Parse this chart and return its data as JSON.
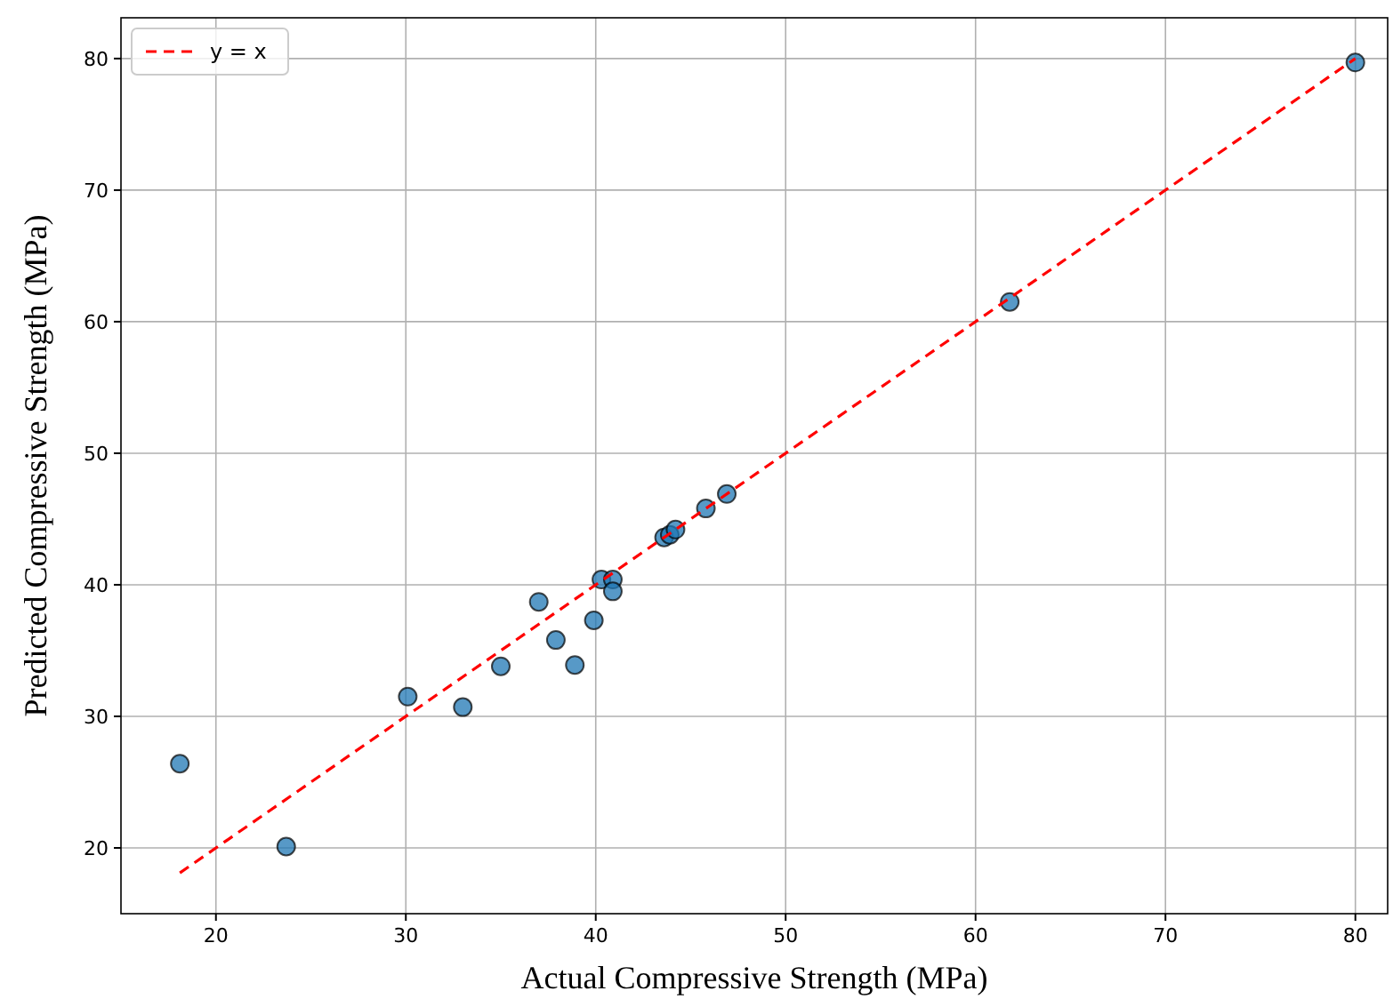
{
  "chart_data": {
    "type": "scatter",
    "xlabel": "Actual Compressive Strength (MPa)",
    "ylabel": "Predicted Compressive Strength (MPa)",
    "xlim": [
      15,
      81.7
    ],
    "ylim": [
      15,
      83.1
    ],
    "xticks": [
      20,
      30,
      40,
      50,
      60,
      70,
      80
    ],
    "yticks": [
      20,
      30,
      40,
      50,
      60,
      70,
      80
    ],
    "grid": true,
    "legend": "top left",
    "marker": "circle",
    "series": [
      {
        "color": "#1f77b4",
        "x": [
          18.1,
          23.7,
          30.1,
          33.0,
          35.0,
          37.0,
          37.9,
          38.9,
          39.9,
          40.3,
          40.9,
          40.9,
          43.6,
          43.9,
          44.2,
          45.8,
          46.9,
          61.8,
          80
        ],
        "values": [
          26.4,
          20.1,
          31.5,
          30.7,
          33.8,
          38.7,
          35.8,
          33.9,
          37.3,
          40.4,
          40.4,
          39.5,
          43.6,
          43.8,
          44.2,
          45.8,
          46.9,
          61.5,
          79.7
        ]
      },
      {
        "type": "line",
        "name": "y = x",
        "color": "#ff0000",
        "line_style": "dashed",
        "marker": "none",
        "x": [
          18.1,
          80
        ],
        "values": [
          18.1,
          80
        ]
      }
    ]
  }
}
